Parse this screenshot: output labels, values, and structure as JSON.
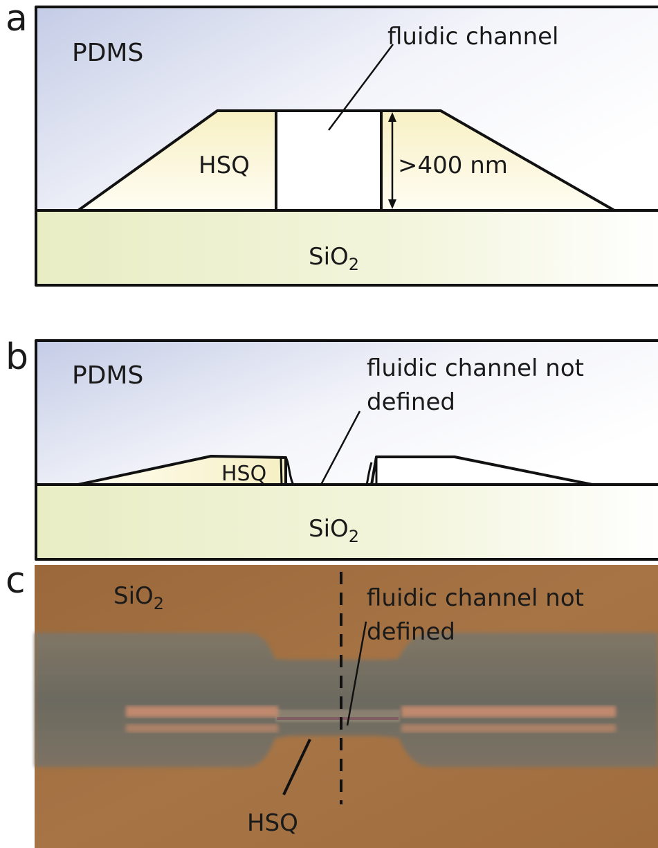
{
  "panels": {
    "a": {
      "letter": "a",
      "pdms_label": "PDMS",
      "channel_label": "fluidic channel",
      "hsq_label": "HSQ",
      "height_label": ">400 nm",
      "substrate_label_main": "SiO",
      "substrate_label_sub": "2"
    },
    "b": {
      "letter": "b",
      "pdms_label": "PDMS",
      "channel_label_line1": "fluidic channel not",
      "channel_label_line2": "defined",
      "hsq_label": "HSQ",
      "substrate_label_main": "SiO",
      "substrate_label_sub": "2"
    },
    "c": {
      "letter": "c",
      "substrate_label_main": "SiO",
      "substrate_label_sub": "2",
      "channel_label_line1": "fluidic channel not",
      "channel_label_line2": "defined",
      "hsq_label": "HSQ"
    }
  },
  "colors": {
    "pdms_gradient": [
      "#c9d0e8",
      "#ffffff"
    ],
    "hsq_fill": "#fbf7dc",
    "sio2_fill": "#eef2cf",
    "micrograph_bg": "#a47040",
    "hsq_micrograph": "#6f6c5e",
    "hsq_stripe": "#c98468"
  }
}
